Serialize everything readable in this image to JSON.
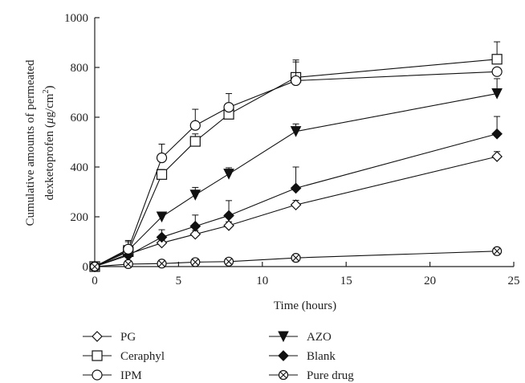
{
  "chart_data": {
    "type": "line",
    "xlabel": "Time (hours)",
    "ylabel_line1": "Cumulative amounts of permeated",
    "ylabel_line2_prefix": "dexketoprofen (",
    "ylabel_unit_mu": "μ",
    "ylabel_unit_rest": "g/cm",
    "ylabel_unit_sup": "2",
    "ylabel_line2_suffix": ")",
    "xlim": [
      0,
      25
    ],
    "ylim": [
      0,
      1000
    ],
    "xticks": [
      0,
      5,
      10,
      15,
      20,
      25
    ],
    "yticks": [
      0,
      200,
      400,
      600,
      800,
      1000
    ],
    "x": [
      0,
      2,
      4,
      6,
      8,
      12,
      24
    ],
    "series": [
      {
        "name": "PG",
        "marker": "diamond-open",
        "values": [
          0,
          50,
          95,
          130,
          165,
          248,
          442
        ],
        "errors": [
          0,
          10,
          12,
          15,
          15,
          18,
          20
        ]
      },
      {
        "name": "AZO",
        "marker": "triangle-down-filled",
        "values": [
          0,
          65,
          200,
          288,
          372,
          543,
          695
        ],
        "errors": [
          0,
          20,
          15,
          30,
          25,
          30,
          60
        ]
      },
      {
        "name": "Ceraphyl",
        "marker": "square-open",
        "values": [
          0,
          60,
          370,
          503,
          612,
          760,
          833
        ],
        "errors": [
          0,
          40,
          20,
          30,
          30,
          70,
          70
        ]
      },
      {
        "name": "Blank",
        "marker": "diamond-filled",
        "values": [
          0,
          45,
          118,
          162,
          205,
          315,
          533
        ],
        "errors": [
          0,
          20,
          30,
          45,
          60,
          85,
          70
        ]
      },
      {
        "name": "IPM",
        "marker": "circle-open",
        "values": [
          0,
          70,
          437,
          567,
          640,
          747,
          783
        ],
        "errors": [
          0,
          35,
          55,
          65,
          55,
          75,
          0
        ]
      },
      {
        "name": "Pure drug",
        "marker": "circle-x",
        "values": [
          0,
          10,
          12,
          18,
          20,
          35,
          62
        ],
        "errors": [
          0,
          0,
          0,
          0,
          0,
          0,
          0
        ]
      }
    ],
    "grid": false,
    "legend_position": "bottom"
  }
}
